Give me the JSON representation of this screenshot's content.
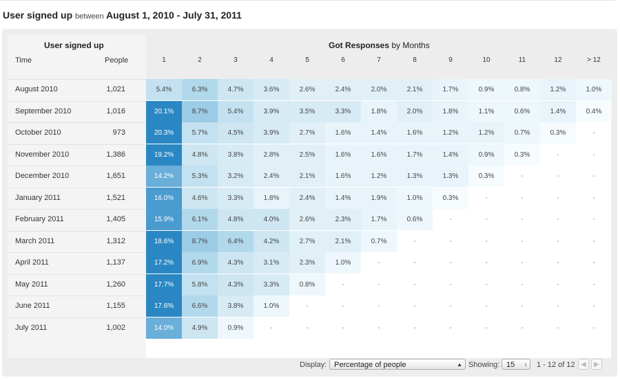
{
  "title": {
    "main": "User signed up",
    "between": "between",
    "range": "August 1, 2010 - July 31, 2011"
  },
  "left_header": {
    "title": "User signed up",
    "time_label": "Time",
    "people_label": "People"
  },
  "right_header": {
    "title_bold": "Got Responses",
    "title_rest": "by Months"
  },
  "months": [
    "1",
    "2",
    "3",
    "4",
    "5",
    "6",
    "7",
    "8",
    "9",
    "10",
    "11",
    "12",
    "> 12"
  ],
  "rows": [
    {
      "time": "August 2010",
      "people": "1,021",
      "values": [
        "5.4%",
        "6.3%",
        "4.7%",
        "3.6%",
        "2.6%",
        "2.4%",
        "2.0%",
        "2.1%",
        "1.7%",
        "0.9%",
        "0.8%",
        "1.2%",
        "1.0%"
      ]
    },
    {
      "time": "September 2010",
      "people": "1,016",
      "values": [
        "20.1%",
        "8.7%",
        "5.4%",
        "3.9%",
        "3.5%",
        "3.3%",
        "1.8%",
        "2.0%",
        "1.8%",
        "1.1%",
        "0.6%",
        "1.4%",
        "0.4%"
      ]
    },
    {
      "time": "October 2010",
      "people": "973",
      "values": [
        "20.3%",
        "5.7%",
        "4.5%",
        "3.9%",
        "2.7%",
        "1.6%",
        "1.4%",
        "1.6%",
        "1.2%",
        "1.2%",
        "0.7%",
        "0.3%",
        "-"
      ]
    },
    {
      "time": "November 2010",
      "people": "1,386",
      "values": [
        "19.2%",
        "4.8%",
        "3.8%",
        "2.8%",
        "2.5%",
        "1.6%",
        "1.6%",
        "1.7%",
        "1.4%",
        "0.9%",
        "0.3%",
        "-",
        "-"
      ]
    },
    {
      "time": "December 2010",
      "people": "1,651",
      "values": [
        "14.2%",
        "5.3%",
        "3.2%",
        "2.4%",
        "2.1%",
        "1.6%",
        "1.2%",
        "1.3%",
        "1.3%",
        "0.3%",
        "-",
        "-",
        "-"
      ]
    },
    {
      "time": "January 2011",
      "people": "1,521",
      "values": [
        "16.0%",
        "4.6%",
        "3.3%",
        "1.8%",
        "2.4%",
        "1.4%",
        "1.9%",
        "1.0%",
        "0.3%",
        "-",
        "-",
        "-",
        "-"
      ]
    },
    {
      "time": "February 2011",
      "people": "1,405",
      "values": [
        "15.9%",
        "6.1%",
        "4.8%",
        "4.0%",
        "2.6%",
        "2.3%",
        "1.7%",
        "0.6%",
        "-",
        "-",
        "-",
        "-",
        "-"
      ]
    },
    {
      "time": "March 2011",
      "people": "1,312",
      "values": [
        "18.6%",
        "8.7%",
        "6.4%",
        "4.2%",
        "2.7%",
        "2.1%",
        "0.7%",
        "-",
        "-",
        "-",
        "-",
        "-",
        "-"
      ]
    },
    {
      "time": "April 2011",
      "people": "1,137",
      "values": [
        "17.2%",
        "6.9%",
        "4.3%",
        "3.1%",
        "2.3%",
        "1.0%",
        "-",
        "-",
        "-",
        "-",
        "-",
        "-",
        "-"
      ]
    },
    {
      "time": "May 2011",
      "people": "1,260",
      "values": [
        "17.7%",
        "5.8%",
        "4.3%",
        "3.3%",
        "0.8%",
        "-",
        "-",
        "-",
        "-",
        "-",
        "-",
        "-",
        "-"
      ]
    },
    {
      "time": "June 2011",
      "people": "1,155",
      "values": [
        "17.6%",
        "6.6%",
        "3.8%",
        "1.0%",
        "-",
        "-",
        "-",
        "-",
        "-",
        "-",
        "-",
        "-",
        "-"
      ]
    },
    {
      "time": "July 2011",
      "people": "1,002",
      "values": [
        "14.0%",
        "4.9%",
        "0.9%",
        "-",
        "-",
        "-",
        "-",
        "-",
        "-",
        "-",
        "-",
        "-",
        "-"
      ]
    }
  ],
  "footer": {
    "display_label": "Display:",
    "display_value": "Percentage of people",
    "showing_label": "Showing:",
    "showing_value": "15",
    "range_text": "1 - 12 of 12",
    "prev_icon": "chevron-left-icon",
    "next_icon": "chevron-right-icon"
  },
  "colors": {
    "heat_max": "#2b87c3",
    "heat_min": "#eef7fb",
    "panel_bg": "#ededed"
  }
}
